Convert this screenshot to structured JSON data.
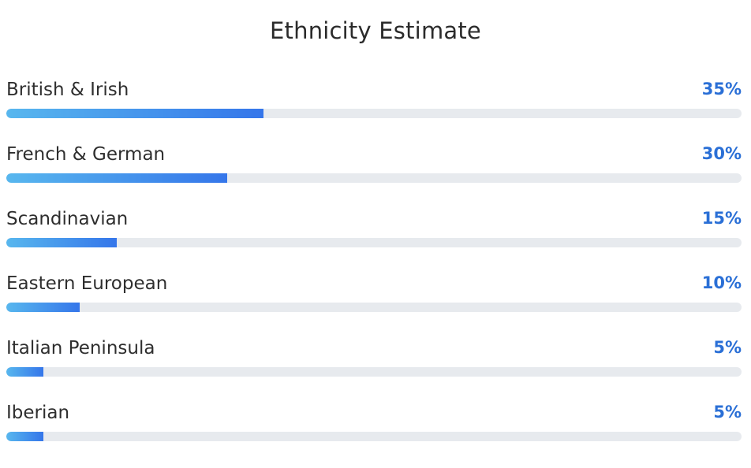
{
  "header": {
    "title": "Ethnicity Estimate"
  },
  "colors": {
    "accent": "#2a6fd6",
    "bar_start": "#58b7ee",
    "bar_end": "#3576ea",
    "track": "#e7eaee"
  },
  "regions": [
    {
      "label": "British & Irish",
      "percent_text": "35%",
      "value": 35
    },
    {
      "label": "French & German",
      "percent_text": "30%",
      "value": 30
    },
    {
      "label": "Scandinavian",
      "percent_text": "15%",
      "value": 15
    },
    {
      "label": "Eastern European",
      "percent_text": "10%",
      "value": 10
    },
    {
      "label": "Italian Peninsula",
      "percent_text": "5%",
      "value": 5
    },
    {
      "label": "Iberian",
      "percent_text": "5%",
      "value": 5
    }
  ]
}
